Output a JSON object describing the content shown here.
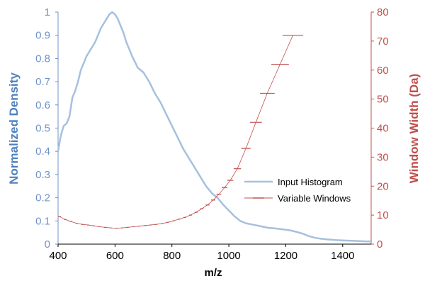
{
  "chart_data": {
    "type": "line",
    "xlabel": "m/z",
    "ylabel_left": "Normalized  Density",
    "ylabel_right": "Window Width (Da)",
    "xlim": [
      400,
      1500
    ],
    "xticks": [
      "400",
      "600",
      "800",
      "1000",
      "1200",
      "1400"
    ],
    "ylim_left": [
      0,
      1
    ],
    "yticks_left": [
      "0",
      "0.1",
      "0.2",
      "0.3",
      "0.4",
      "0.5",
      "0.6",
      "0.7",
      "0.8",
      "0.9",
      "1"
    ],
    "ylim_right": [
      0,
      80
    ],
    "yticks_right": [
      "0",
      "10",
      "20",
      "30",
      "40",
      "50",
      "60",
      "70",
      "80"
    ],
    "grid": false,
    "legend_position": "right",
    "colors": {
      "left_axis": "#6f93c4",
      "right_axis": "#c0504d",
      "histogram": "#a6c0de",
      "windows": "#c0504d"
    },
    "series": [
      {
        "name": "Input Histogram",
        "axis": "left",
        "x": [
          400,
          410,
          420,
          430,
          440,
          450,
          460,
          470,
          480,
          490,
          500,
          510,
          520,
          530,
          540,
          550,
          560,
          570,
          580,
          590,
          600,
          610,
          620,
          630,
          640,
          650,
          660,
          680,
          700,
          720,
          740,
          760,
          780,
          800,
          820,
          840,
          860,
          880,
          900,
          920,
          940,
          960,
          980,
          1000,
          1020,
          1040,
          1060,
          1080,
          1100,
          1120,
          1140,
          1160,
          1180,
          1200,
          1220,
          1240,
          1260,
          1280,
          1300,
          1320,
          1340,
          1360,
          1380,
          1400,
          1420,
          1440,
          1460,
          1480,
          1500
        ],
        "y": [
          0.4,
          0.47,
          0.51,
          0.52,
          0.55,
          0.63,
          0.66,
          0.7,
          0.75,
          0.78,
          0.81,
          0.83,
          0.85,
          0.87,
          0.9,
          0.93,
          0.95,
          0.97,
          0.99,
          1.0,
          0.99,
          0.97,
          0.94,
          0.91,
          0.87,
          0.84,
          0.81,
          0.76,
          0.74,
          0.7,
          0.65,
          0.61,
          0.56,
          0.51,
          0.46,
          0.41,
          0.37,
          0.33,
          0.29,
          0.25,
          0.22,
          0.2,
          0.17,
          0.145,
          0.12,
          0.1,
          0.09,
          0.085,
          0.08,
          0.075,
          0.07,
          0.068,
          0.065,
          0.062,
          0.058,
          0.052,
          0.045,
          0.035,
          0.028,
          0.024,
          0.021,
          0.019,
          0.017,
          0.016,
          0.015,
          0.014,
          0.013,
          0.012,
          0.012
        ]
      },
      {
        "name": "Variable Windows",
        "axis": "right",
        "x": [
          405,
          425,
          445,
          465,
          485,
          505,
          525,
          545,
          565,
          585,
          605,
          625,
          645,
          665,
          685,
          705,
          725,
          745,
          765,
          785,
          805,
          825,
          845,
          865,
          885,
          905,
          925,
          945,
          965,
          985,
          1005,
          1030,
          1060,
          1095,
          1135,
          1180,
          1225
        ],
        "y": [
          9.5,
          8.5,
          7.8,
          7.2,
          6.8,
          6.6,
          6.3,
          6.0,
          5.8,
          5.6,
          5.5,
          5.6,
          5.8,
          6.0,
          6.2,
          6.4,
          6.6,
          6.8,
          7.1,
          7.5,
          8.0,
          8.6,
          9.2,
          10.0,
          11.0,
          12.2,
          13.5,
          15.2,
          17.2,
          19.5,
          22.0,
          26.0,
          33.0,
          42.0,
          52.0,
          62.0,
          72.0
        ],
        "half_widths": [
          5,
          4.5,
          4,
          3.6,
          3.4,
          3.3,
          3.2,
          3.0,
          2.9,
          2.8,
          2.8,
          2.8,
          2.9,
          3.0,
          3.1,
          3.2,
          3.3,
          3.4,
          3.6,
          3.8,
          4,
          4.3,
          4.6,
          5,
          5.5,
          6,
          6.8,
          7.6,
          8.6,
          9.8,
          11,
          13,
          16.5,
          21,
          26,
          31,
          36
        ]
      }
    ]
  }
}
